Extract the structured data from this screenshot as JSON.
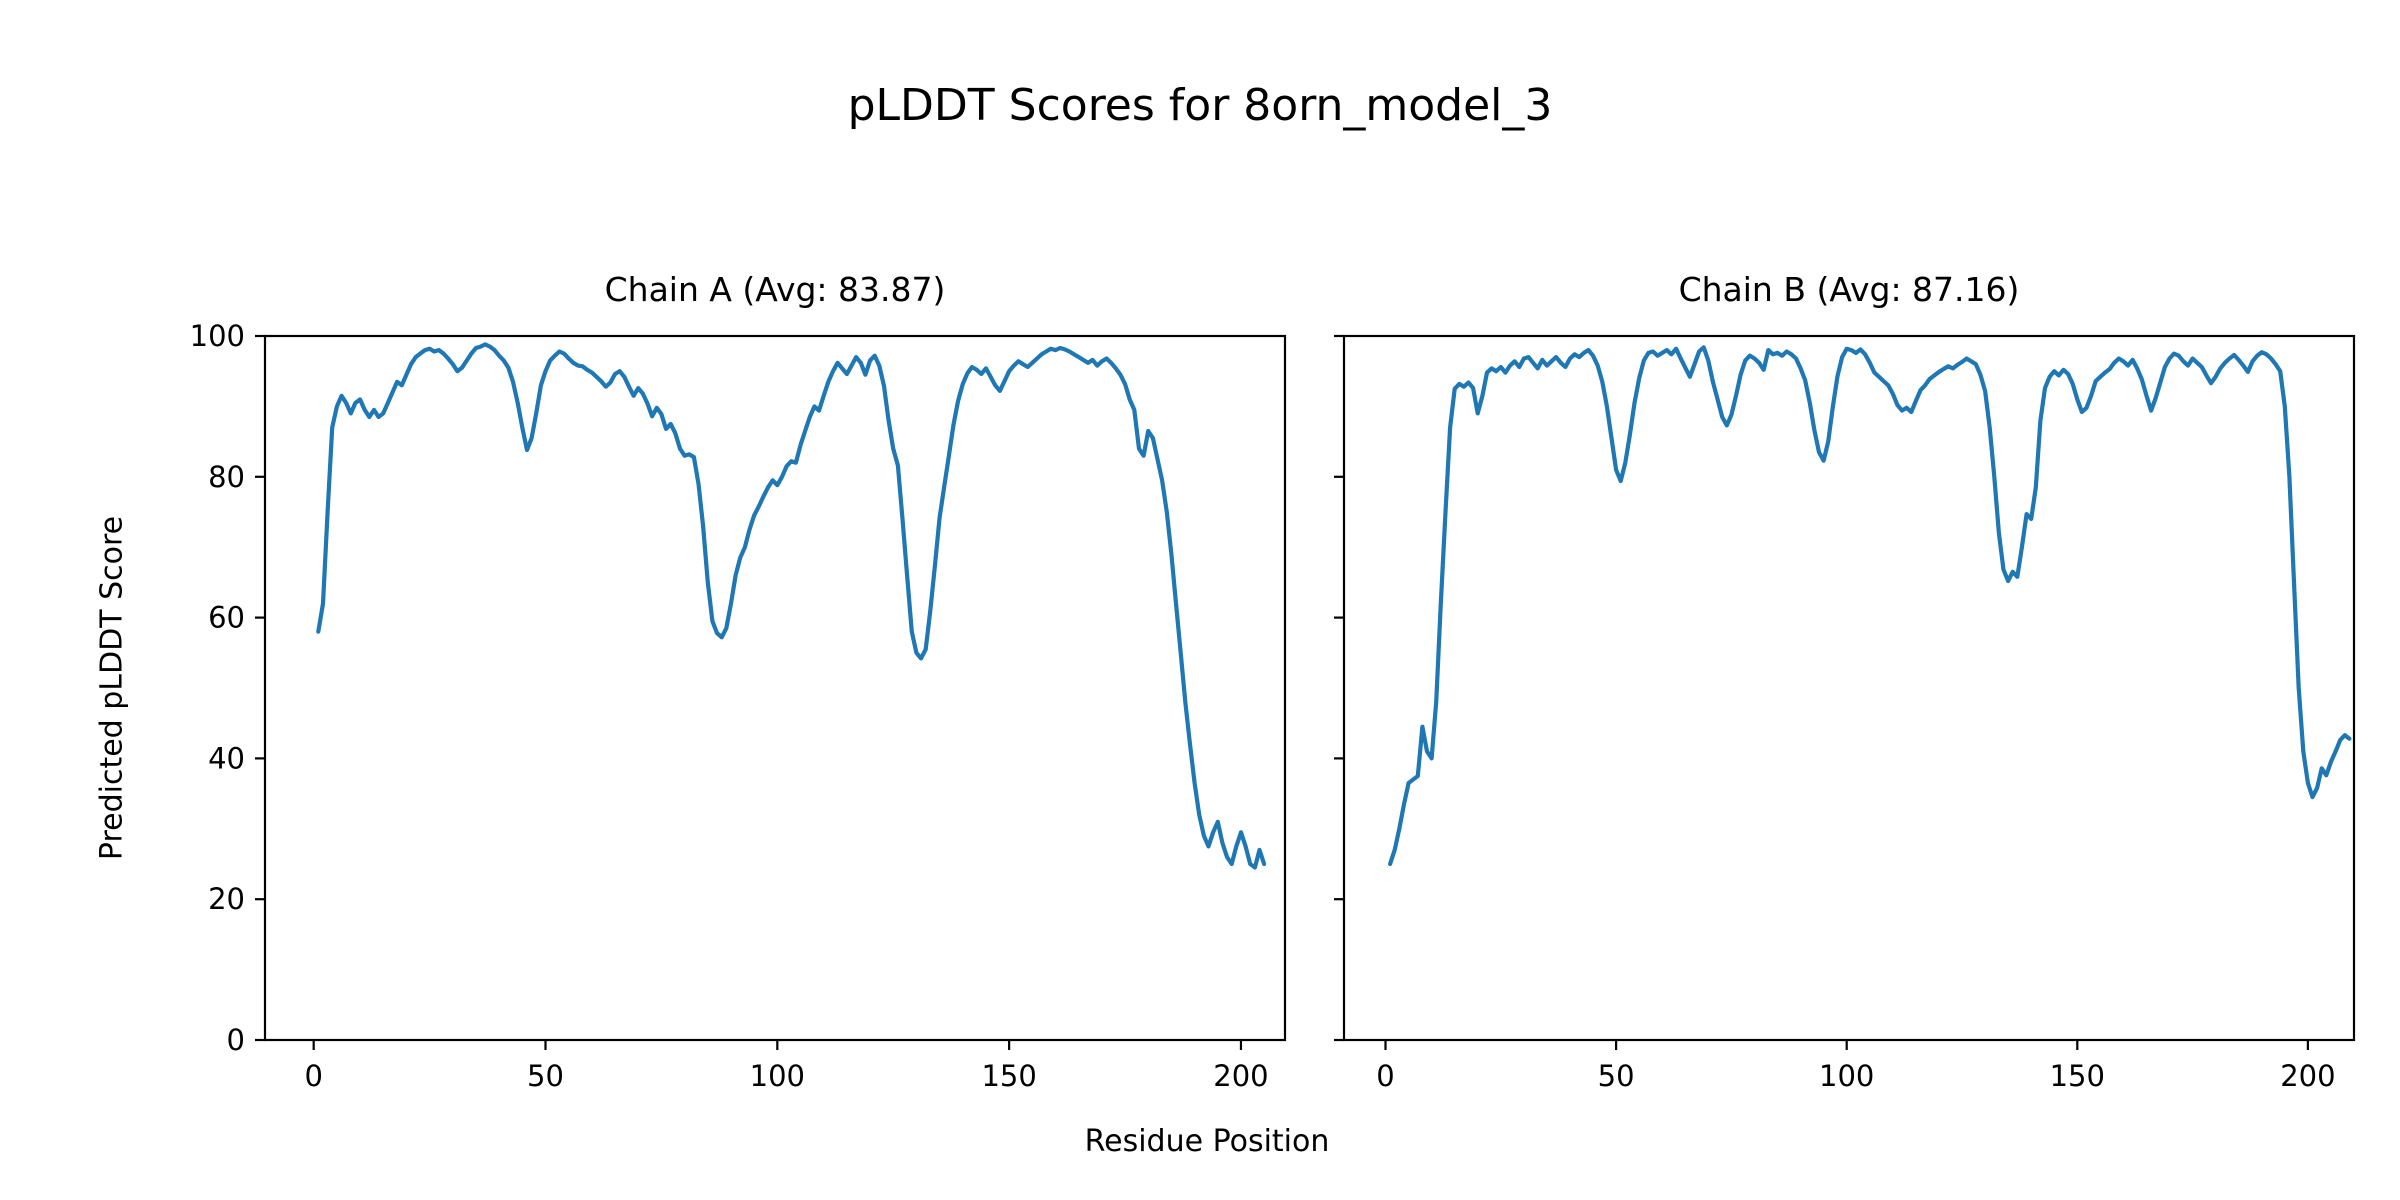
{
  "figure": {
    "title": "pLDDT Scores for 8orn_model_3",
    "background": "#ffffff"
  },
  "chart_data": {
    "type": "line",
    "title": "pLDDT Scores for 8orn_model_3",
    "xlabel": "Residue Position",
    "ylabel": "Predicted pLDDT Score",
    "ylim": [
      0,
      100
    ],
    "yticks": [
      0,
      20,
      40,
      60,
      80,
      100
    ],
    "xticks": [
      0,
      50,
      100,
      150,
      200
    ],
    "grid": false,
    "legend_position": "none",
    "line_color": "#1f77b4",
    "axis_color": "#000000",
    "subplots": [
      {
        "title": "Chain A (Avg: 83.87)",
        "chain": "A",
        "avg": 83.87,
        "x_start": 1,
        "xlim": [
          -10.5,
          209.5
        ],
        "show_y_tick_labels": true,
        "values": [
          58,
          62,
          75,
          87,
          90,
          91.5,
          90.5,
          89,
          90.5,
          91,
          89.5,
          88.5,
          89.5,
          88.5,
          89,
          90.5,
          92,
          93.5,
          93,
          94.5,
          96,
          97,
          97.5,
          98,
          98.2,
          97.8,
          98,
          97.5,
          96.8,
          96,
          95,
          95.5,
          96.5,
          97.5,
          98.3,
          98.5,
          98.8,
          98.5,
          98,
          97.2,
          96.5,
          95.5,
          93.5,
          90.5,
          87,
          83.8,
          85.5,
          89,
          93,
          95,
          96.5,
          97.2,
          97.8,
          97.5,
          96.8,
          96.2,
          95.8,
          95.7,
          95.2,
          94.8,
          94.2,
          93.6,
          92.8,
          93.4,
          94.6,
          95,
          94.2,
          92.8,
          91.5,
          92.6,
          91.8,
          90.4,
          88.6,
          89.8,
          88.9,
          86.8,
          87.5,
          86.2,
          84,
          83,
          83.2,
          82.8,
          79,
          73,
          65,
          59.5,
          57.8,
          57.2,
          58.5,
          62,
          66,
          68.5,
          70,
          72.5,
          74.5,
          75.8,
          77.2,
          78.5,
          79.5,
          78.8,
          80,
          81.5,
          82.2,
          82,
          84.5,
          86.5,
          88.5,
          90,
          89.4,
          91.5,
          93.5,
          95,
          96.2,
          95.4,
          94.6,
          95.8,
          97,
          96.2,
          94.5,
          96.5,
          97.2,
          95.8,
          92.9,
          88,
          84,
          81.6,
          74,
          66,
          58,
          55,
          54.2,
          55.5,
          61,
          67.5,
          74.2,
          78.6,
          83,
          87.4,
          90.8,
          93.2,
          94.7,
          95.6,
          95.2,
          94.6,
          95.4,
          94.2,
          93,
          92.2,
          93.6,
          95,
          95.8,
          96.4,
          96,
          95.6,
          96.2,
          96.8,
          97.4,
          97.8,
          98.2,
          98,
          98.3,
          98.1,
          97.8,
          97.4,
          97,
          96.6,
          96.2,
          96.6,
          95.8,
          96.4,
          96.8,
          96.2,
          95.4,
          94.5,
          93.2,
          91,
          89.5,
          84,
          83,
          86.5,
          85.5,
          82.5,
          79.5,
          75,
          69,
          62,
          55,
          48,
          42,
          36.5,
          32,
          29,
          27.5,
          29.5,
          31,
          28,
          26,
          25,
          27.5,
          29.5,
          27.5,
          25,
          24.5,
          27,
          25
        ]
      },
      {
        "title": "Chain B (Avg: 87.16)",
        "chain": "B",
        "avg": 87.16,
        "x_start": 1,
        "xlim": [
          -9,
          210
        ],
        "show_y_tick_labels": false,
        "values": [
          25,
          27,
          30,
          33.5,
          36.5,
          37,
          37.5,
          44.5,
          41,
          40,
          48,
          62,
          75,
          87,
          92.5,
          93.2,
          92.8,
          93.4,
          92.6,
          89,
          91.5,
          94.8,
          95.4,
          95,
          95.6,
          94.8,
          95.8,
          96.4,
          95.6,
          96.8,
          97,
          96.2,
          95.4,
          96.6,
          95.8,
          96.4,
          97,
          96.2,
          95.6,
          96.8,
          97.4,
          97,
          97.6,
          98,
          97.2,
          95.8,
          93.5,
          90,
          85.5,
          81,
          79.4,
          82,
          86,
          90.5,
          94,
          96.5,
          97.6,
          97.8,
          97.2,
          97.6,
          98,
          97.4,
          98.2,
          96.8,
          95.5,
          94.2,
          96,
          97.8,
          98.4,
          96.5,
          93.5,
          91,
          88.5,
          87.3,
          88.8,
          91.5,
          94.5,
          96.5,
          97.2,
          96.8,
          96.2,
          95.2,
          98,
          97.4,
          97.6,
          97.2,
          97.8,
          97.4,
          96.8,
          95.4,
          93.7,
          90.5,
          86.6,
          83.5,
          82.3,
          85,
          90,
          94.3,
          97,
          98.2,
          98,
          97.6,
          98.1,
          97.4,
          96.2,
          94.8,
          94.2,
          93.6,
          93,
          91.8,
          90.2,
          89.4,
          89.8,
          89.2,
          90.8,
          92.3,
          93,
          93.9,
          94.4,
          94.9,
          95.3,
          95.7,
          95.4,
          95.9,
          96.3,
          96.8,
          96.4,
          96,
          94.5,
          92.2,
          87,
          80,
          72,
          66.8,
          65.2,
          66.5,
          65.8,
          70,
          74.7,
          74,
          78.5,
          88,
          92.6,
          94.2,
          95,
          94.4,
          95.2,
          94.6,
          93.2,
          91,
          89.2,
          89.8,
          91.5,
          93.6,
          94.2,
          94.8,
          95.3,
          96.2,
          96.8,
          96.4,
          95.8,
          96.6,
          95.4,
          93.8,
          91.5,
          89.4,
          91.2,
          93.4,
          95.6,
          96.8,
          97.5,
          97.2,
          96.4,
          95.8,
          96.8,
          96.2,
          95.6,
          94.4,
          93.3,
          94.2,
          95.4,
          96.2,
          96.8,
          97.3,
          96.6,
          95.8,
          94.9,
          96.4,
          97.2,
          97.7,
          97.4,
          96.8,
          96,
          95,
          90,
          80,
          65,
          50,
          41,
          36.5,
          34.5,
          35.8,
          38.6,
          37.6,
          39.5,
          41,
          42.6,
          43.3,
          42.8
        ]
      }
    ]
  }
}
